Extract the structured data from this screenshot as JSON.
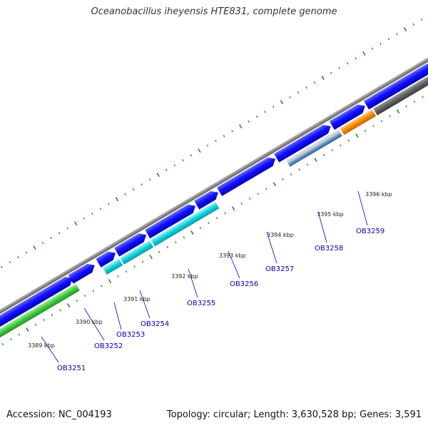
{
  "title": "Oceanobacillus iheyensis HTE831, complete genome",
  "accession_text": "Accession: NC_004193",
  "summary_text": "Topology: circular; Length: 3,630,528 bp; Genes: 3,591",
  "colors": {
    "backbone": "#8c8c8c",
    "forward_gene": "#0000ee",
    "reverse_gene_cyan": "#00c8d0",
    "reverse_gene_green": "#3ecb3e",
    "reverse_gene_orange": "#ff8a00",
    "reverse_gene_gray": "#606060",
    "reverse_gene_steel": "#4d82b8",
    "ticks": "#2a8a2a",
    "gene_label": "#0000b0"
  },
  "tick_labels": [
    "3389 kbp",
    "3390 kbp",
    "3391 kbp",
    "3392 kbp",
    "3393 kbp",
    "3394 kbp",
    "3395 kbp",
    "3396 kbp"
  ],
  "gene_labels": [
    "OB3251",
    "OB3252",
    "OB3253",
    "OB3254",
    "OB3255",
    "OB3256",
    "OB3257",
    "OB3258",
    "OB3259"
  ]
}
